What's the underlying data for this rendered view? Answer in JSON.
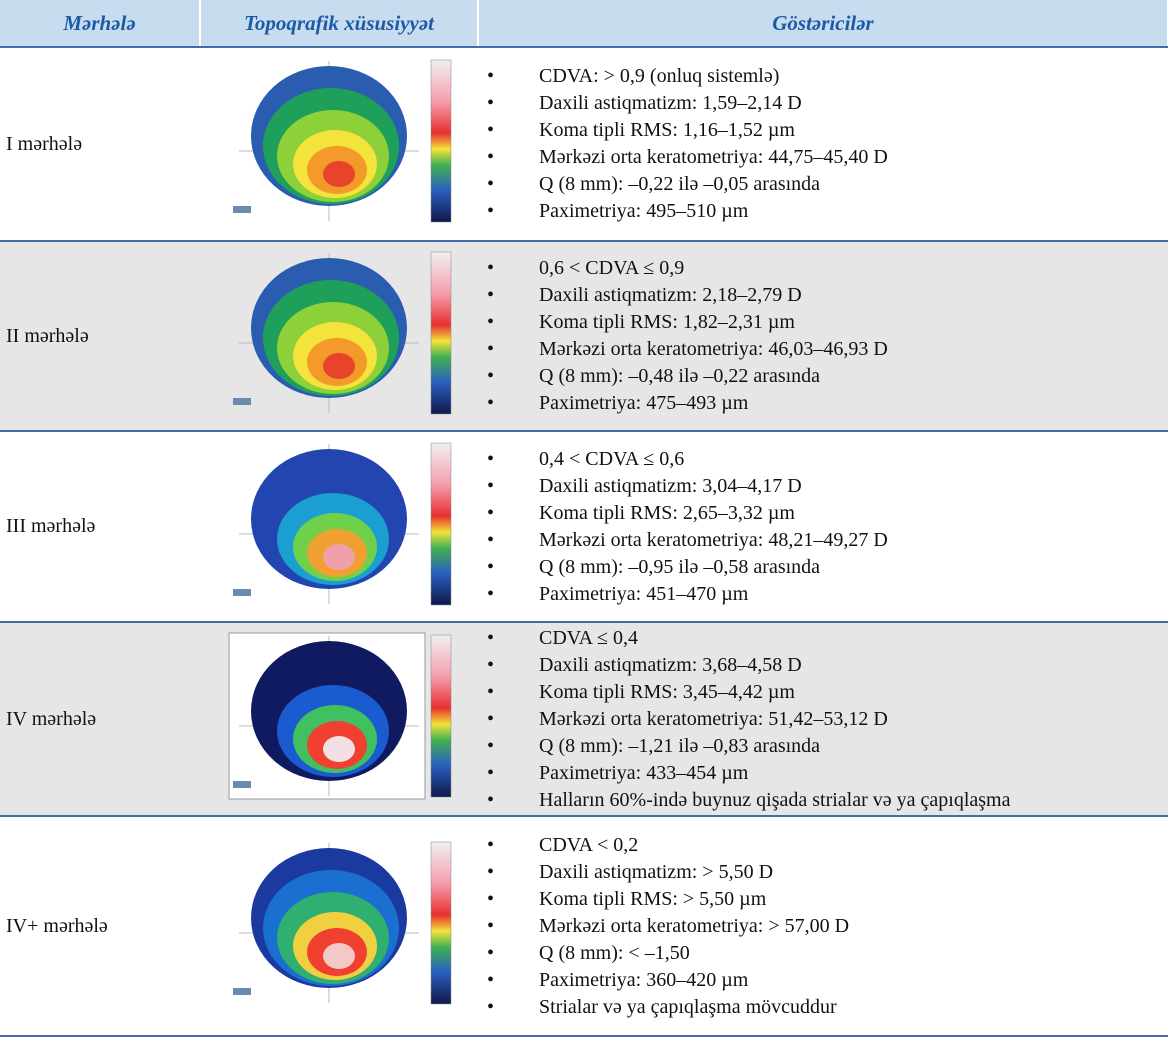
{
  "header": [
    "Mərhələ",
    "Topoqrafik xüsusiyyət",
    "Göstəricilər"
  ],
  "rows": [
    {
      "stage": "I mərhələ",
      "indicators": [
        "CDVA: > 0,9 (onluq sistemlə)",
        "Daxili astiqmatizm: 1,59–2,14 D",
        "Koma tipli RMS: 1,16–1,52 µm",
        "Mərkəzi orta keratometriya: 44,75–45,40 D",
        "Q (8 mm): –0,22 ilə –0,05 arasında",
        "Paximetriya: 495–510 µm"
      ]
    },
    {
      "stage": "II mərhələ",
      "indicators": [
        "0,6 < CDVA ≤ 0,9",
        "Daxili astiqmatizm: 2,18–2,79 D",
        "Koma tipli RMS: 1,82–2,31 µm",
        "Mərkəzi orta keratometriya: 46,03–46,93 D",
        "Q (8 mm): –0,48 ilə –0,22 arasında",
        "Paximetriya: 475–493 µm"
      ]
    },
    {
      "stage": "III mərhələ",
      "indicators": [
        "0,4 < CDVA ≤ 0,6",
        "Daxili astiqmatizm: 3,04–4,17 D",
        "Koma tipli RMS: 2,65–3,32 µm",
        "Mərkəzi orta keratometriya: 48,21–49,27 D",
        "Q (8 mm): –0,95 ilə –0,58 arasında",
        "Paximetriya: 451–470 µm"
      ]
    },
    {
      "stage": "IV mərhələ",
      "indicators": [
        "CDVA ≤ 0,4",
        "Daxili astiqmatizm: 3,68–4,58 D",
        "Koma tipli RMS: 3,45–4,42 µm",
        "Mərkəzi orta keratometriya: 51,42–53,12 D",
        "Q (8 mm): –1,21 ilə –0,83 arasında",
        "Paximetriya: 433–454 µm",
        "Halların 60%-ində buynuz qişada strialar və ya çapıqlaşma"
      ]
    },
    {
      "stage": "IV+ mərhələ",
      "indicators": [
        "CDVA < 0,2",
        "Daxili astiqmatizm: > 5,50 D",
        "Koma tipli RMS: > 5,50 µm",
        "Mərkəzi orta keratometriya: > 57,00 D",
        "Q (8 mm): < –1,50",
        "Paximetriya: 360–420 µm",
        "Strialar və ya çapıqlaşma mövcuddur"
      ]
    }
  ]
}
